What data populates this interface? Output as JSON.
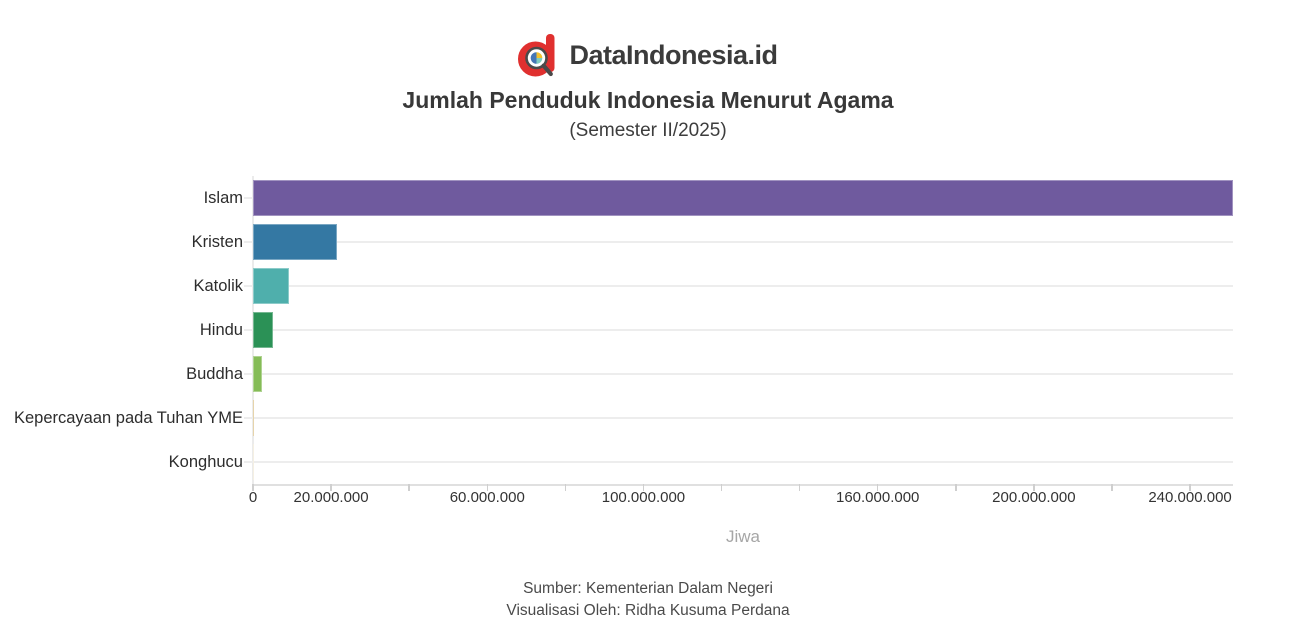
{
  "brand": {
    "wordmark": "DataIndonesia.id",
    "logo_red": "#e0302f",
    "logo_dark": "#4a4a4a"
  },
  "header": {
    "title": "Jumlah Penduduk Indonesia Menurut Agama",
    "subtitle": "(Semester II/2025)"
  },
  "chart_data": {
    "type": "bar",
    "orientation": "horizontal",
    "title": "Jumlah Penduduk Indonesia Menurut Agama",
    "subtitle": "(Semester II/2025)",
    "xlabel": "Jiwa",
    "legend": "none",
    "grid": "horizontal",
    "xlim": [
      0,
      251000000
    ],
    "categories": [
      "Islam",
      "Kristen",
      "Katolik",
      "Hindu",
      "Buddha",
      "Kepercayaan pada Tuhan YME",
      "Konghucu"
    ],
    "values": [
      251000000,
      21400000,
      9200000,
      5100000,
      2200000,
      200000,
      100000
    ],
    "bar_colors": [
      "#6f5a9e",
      "#3478a3",
      "#4fafac",
      "#2b9156",
      "#85bc57",
      "#d9be7f",
      "#f0e9d4"
    ],
    "x_ticks": [
      {
        "v": 0,
        "label": "0"
      },
      {
        "v": 20000000,
        "label": "20.000.000"
      },
      {
        "v": 40000000,
        "label": ""
      },
      {
        "v": 60000000,
        "label": "60.000.000"
      },
      {
        "v": 80000000,
        "label": ""
      },
      {
        "v": 100000000,
        "label": "100.000.000"
      },
      {
        "v": 120000000,
        "label": ""
      },
      {
        "v": 140000000,
        "label": ""
      },
      {
        "v": 160000000,
        "label": "160.000.000"
      },
      {
        "v": 180000000,
        "label": ""
      },
      {
        "v": 200000000,
        "label": "200.000.000"
      },
      {
        "v": 220000000,
        "label": ""
      },
      {
        "v": 240000000,
        "label": "240.000.000"
      }
    ]
  },
  "footer": {
    "source": "Sumber: Kementerian Dalam Negeri",
    "credit": "Visualisasi Oleh: Ridha Kusuma Perdana"
  }
}
